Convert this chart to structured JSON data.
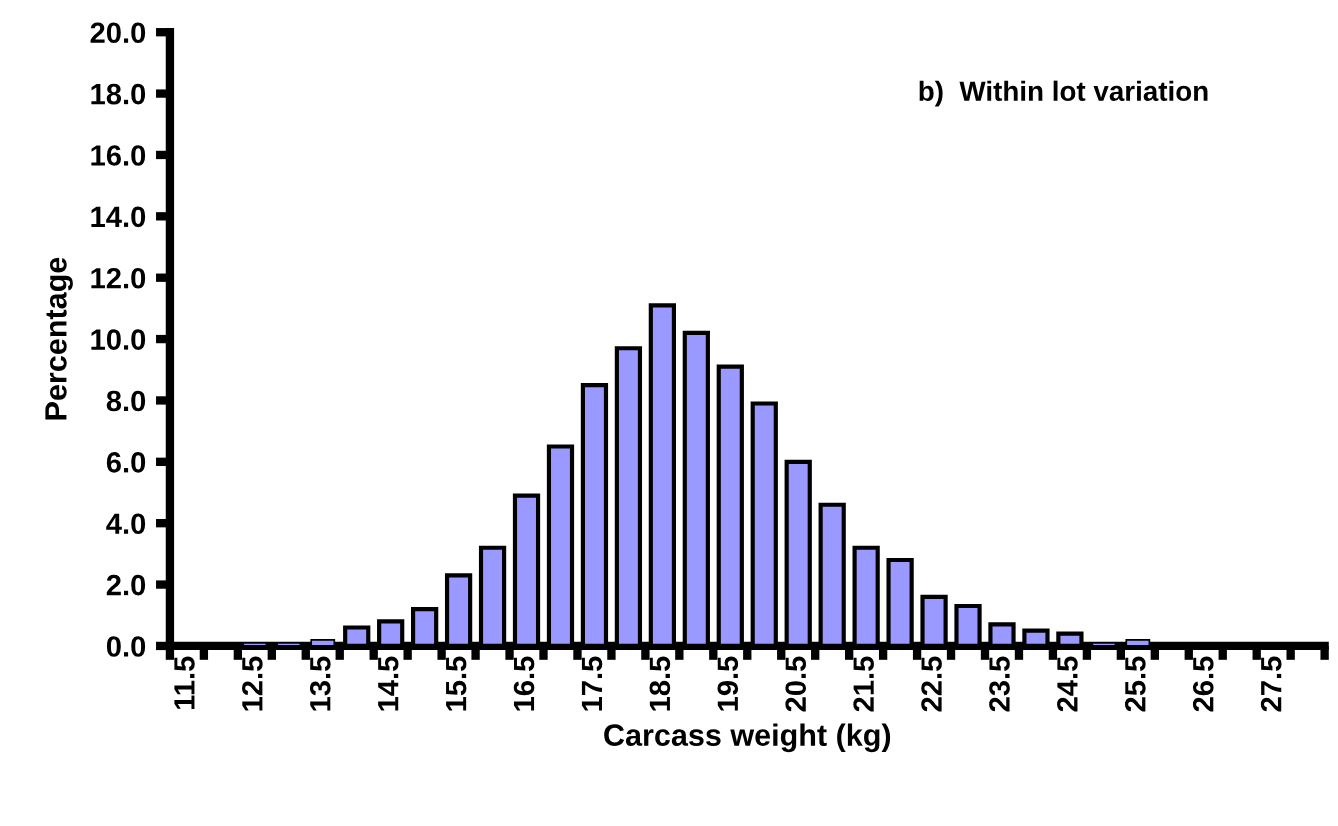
{
  "chart_data": {
    "type": "bar",
    "categories": [
      "11.5",
      null,
      "12.5",
      null,
      "13.5",
      null,
      "14.5",
      null,
      "15.5",
      null,
      "16.5",
      null,
      "17.5",
      null,
      "18.5",
      null,
      "19.5",
      null,
      "20.5",
      null,
      "21.5",
      null,
      "22.5",
      null,
      "23.5",
      null,
      "24.5",
      null,
      "25.5",
      null,
      "26.5",
      null,
      "27.5",
      null
    ],
    "values": [
      0.0,
      0.0,
      0.1,
      0.1,
      0.2,
      0.6,
      0.8,
      1.2,
      2.3,
      3.2,
      4.9,
      6.5,
      8.5,
      9.7,
      11.1,
      10.2,
      9.1,
      7.9,
      6.0,
      4.6,
      3.2,
      2.8,
      1.6,
      1.3,
      0.7,
      0.5,
      0.4,
      0.1,
      0.2,
      0.0,
      0.0,
      0.0,
      0.0,
      0.0
    ],
    "color": "#9999ff",
    "xlabel": "Carcass weight (kg)",
    "ylabel": "Percentage",
    "annotations": [
      "b)  Within lot variation"
    ],
    "ylim": [
      0,
      20
    ],
    "yticks": [
      {
        "value": 0,
        "label": "0.0"
      },
      {
        "value": 2,
        "label": "2.0"
      },
      {
        "value": 4,
        "label": "4.0"
      },
      {
        "value": 6,
        "label": "6.0"
      },
      {
        "value": 8,
        "label": "8.0"
      },
      {
        "value": 10,
        "label": "10.0"
      },
      {
        "value": 12,
        "label": "12.0"
      },
      {
        "value": 14,
        "label": "14.0"
      },
      {
        "value": 16,
        "label": "16.0"
      },
      {
        "value": 18,
        "label": "18.0"
      },
      {
        "value": 20,
        "label": "20.0"
      }
    ],
    "grid": false,
    "legend": false
  }
}
